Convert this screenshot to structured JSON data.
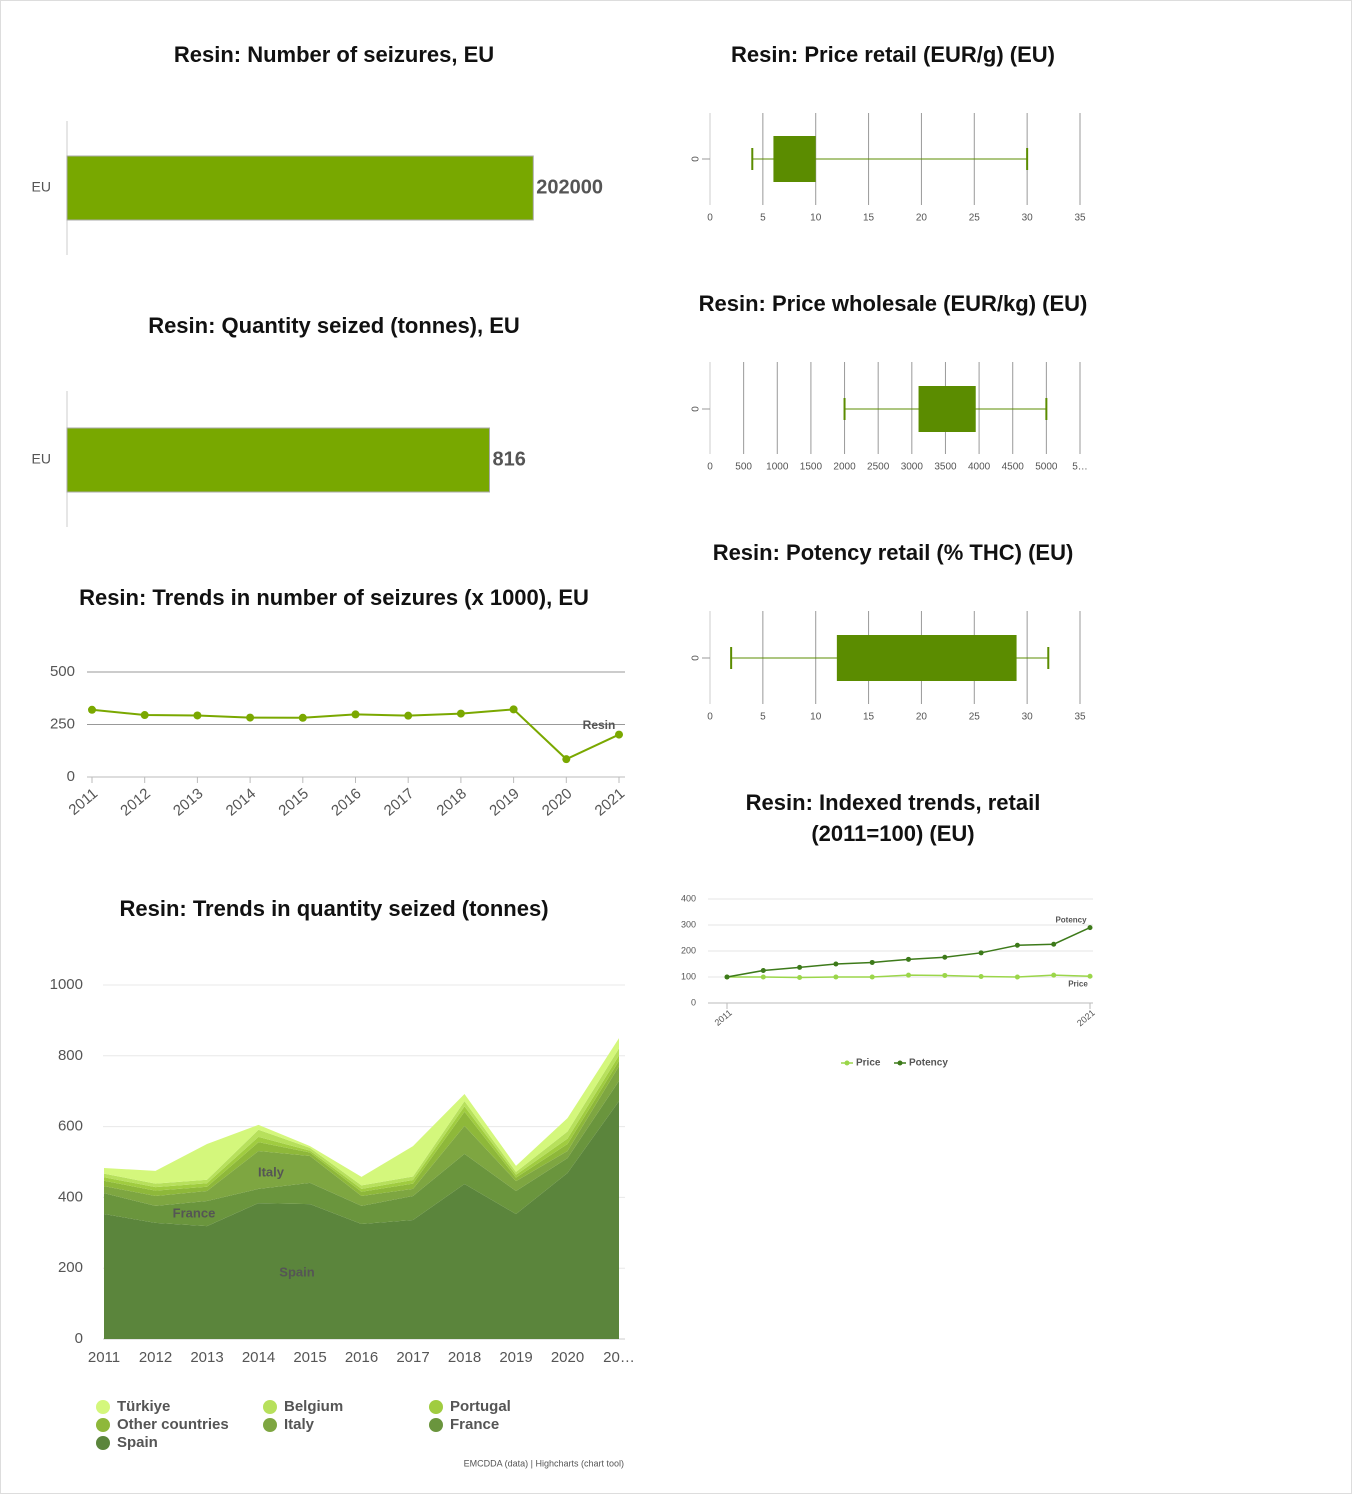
{
  "chart_data": [
    {
      "type": "bar",
      "title": "Resin: Number of seizures, EU",
      "categories": [
        "EU"
      ],
      "values": [
        202000
      ],
      "color": "#78a800",
      "xlim": [
        0,
        240000
      ]
    },
    {
      "type": "bar",
      "title": "Resin: Quantity seized (tonnes), EU",
      "categories": [
        "EU"
      ],
      "values": [
        816
      ],
      "color": "#78a800",
      "xlim": [
        0,
        1070
      ]
    },
    {
      "type": "line",
      "title": "Resin: Trends in number of seizures (x 1000), EU",
      "categories": [
        "2011",
        "2012",
        "2013",
        "2014",
        "2015",
        "2016",
        "2017",
        "2018",
        "2019",
        "2020",
        "2021"
      ],
      "series": [
        {
          "name": "Resin",
          "color": "#7aa800",
          "values": [
            320,
            295,
            293,
            283,
            282,
            298,
            292,
            302,
            322,
            85,
            202
          ]
        }
      ],
      "ylim": [
        0,
        500
      ],
      "yticks": [
        0,
        250,
        500
      ],
      "grid": true
    },
    {
      "type": "area",
      "title": "Resin: Trends in quantity seized (tonnes)",
      "categories": [
        "2011",
        "2012",
        "2013",
        "2014",
        "2015",
        "2016",
        "2017",
        "2018",
        "2019",
        "2020",
        "20…"
      ],
      "series": [
        {
          "name": "Türkiye",
          "color": "#d4f77c",
          "values": [
            16,
            36,
            101,
            14,
            5,
            24,
            86,
            20,
            17,
            38,
            29
          ]
        },
        {
          "name": "Belgium",
          "color": "#b7e05c",
          "values": [
            10,
            10,
            10,
            20,
            8,
            10,
            10,
            15,
            8,
            20,
            20
          ]
        },
        {
          "name": "Portugal",
          "color": "#a0cc40",
          "values": [
            10,
            10,
            10,
            15,
            5,
            8,
            10,
            15,
            8,
            15,
            15
          ]
        },
        {
          "name": "Other countries",
          "color": "#8eb83a",
          "values": [
            15,
            15,
            12,
            25,
            10,
            12,
            15,
            40,
            10,
            20,
            15
          ]
        },
        {
          "name": "Italy",
          "color": "#7ea641",
          "values": [
            20,
            28,
            28,
            107,
            76,
            28,
            20,
            79,
            28,
            20,
            42
          ]
        },
        {
          "name": "France",
          "color": "#6a953d",
          "values": [
            59,
            48,
            71,
            40,
            60,
            51,
            68,
            85,
            65,
            42,
            57
          ]
        },
        {
          "name": "Spain",
          "color": "#5b853c",
          "values": [
            353,
            328,
            319,
            384,
            381,
            325,
            336,
            438,
            353,
            469,
            672
          ]
        }
      ],
      "ylim": [
        0,
        1000
      ],
      "yticks": [
        0,
        200,
        400,
        600,
        800,
        1000
      ],
      "grid": true,
      "stacked": true,
      "legend": "bottom",
      "credits": "EMCDDA (data) | Highcharts (chart tool)"
    },
    {
      "type": "boxplot",
      "title": "Resin: Price retail (EUR/g) (EU)",
      "categories": [
        "0"
      ],
      "low": [
        4
      ],
      "q1": [
        6
      ],
      "q3": [
        10
      ],
      "high": [
        30
      ],
      "color": "#5b8c00",
      "xlim": [
        0,
        35
      ],
      "xticks": [
        0,
        5,
        10,
        15,
        20,
        25,
        30,
        35
      ],
      "grid": true
    },
    {
      "type": "boxplot",
      "title": "Resin: Price wholesale (EUR/kg) (EU)",
      "categories": [
        "0"
      ],
      "low": [
        2000
      ],
      "q1": [
        3100
      ],
      "q3": [
        3950
      ],
      "high": [
        5000
      ],
      "color": "#5b8c00",
      "xlim": [
        0,
        5500
      ],
      "xticks": [
        0,
        500,
        1000,
        1500,
        2000,
        2500,
        3000,
        3500,
        4000,
        4500,
        5000,
        {
          "value": 5500,
          "label": "5…"
        }
      ],
      "grid": true
    },
    {
      "type": "boxplot",
      "title": "Resin: Potency retail (% THC) (EU)",
      "categories": [
        "0"
      ],
      "low": [
        2
      ],
      "q1": [
        12
      ],
      "q3": [
        29
      ],
      "high": [
        32
      ],
      "color": "#5b8c00",
      "xlim": [
        0,
        35
      ],
      "xticks": [
        0,
        5,
        10,
        15,
        20,
        25,
        30,
        35
      ],
      "grid": true
    },
    {
      "type": "line",
      "title": "Resin: Indexed trends, retail (2011=100) (EU)",
      "categories": [
        "2011",
        null,
        null,
        null,
        null,
        null,
        null,
        null,
        null,
        null,
        "2021"
      ],
      "series": [
        {
          "name": "Price",
          "color": "#9bd64a",
          "values": [
            100,
            100,
            98,
            100,
            100,
            107,
            106,
            102,
            100,
            107,
            103
          ]
        },
        {
          "name": "Potency",
          "color": "#3d7a1a",
          "values": [
            100,
            125,
            137,
            150,
            156,
            168,
            176,
            193,
            222,
            226,
            290
          ]
        }
      ],
      "ylim": [
        0,
        400
      ],
      "yticks": [
        0,
        100,
        200,
        300,
        400
      ],
      "grid": true,
      "legend": "bottom"
    }
  ]
}
